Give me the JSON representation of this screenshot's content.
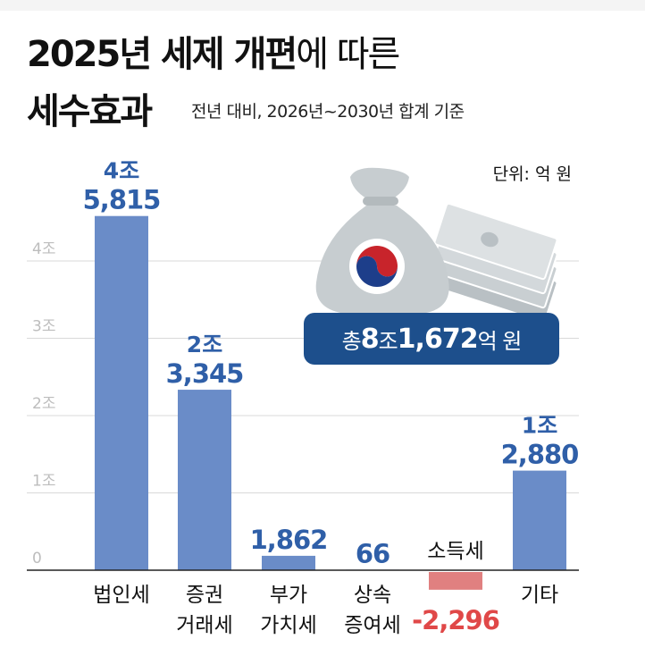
{
  "title": {
    "line1_bold": "2025년 세제 개편",
    "line1_light": "에 따른",
    "line2": "세수효과"
  },
  "subtitle": "전년 대비, 2026년~2030년 합계 기준",
  "unit": "단위: 억 원",
  "total_badge": {
    "prefix": "총 ",
    "big1": "8",
    "mid": "조 ",
    "big2": "1,672",
    "suffix": "억 원"
  },
  "icons": [
    "money-bag-icon",
    "korea-taegeuk-emblem-icon",
    "banknote-stack-icon"
  ],
  "colors": {
    "positive_bar": "#6a8cc8",
    "negative_bar": "#e08080",
    "positive_label": "#2f5fa8",
    "negative_label": "#e04848",
    "badge": "#1d4f8c"
  },
  "chart_data": {
    "type": "bar",
    "ylim": [
      0,
      50000
    ],
    "grid": true,
    "yticks": [
      {
        "value": 0,
        "label": "0"
      },
      {
        "value": 10000,
        "label": "1조"
      },
      {
        "value": 20000,
        "label": "2조"
      },
      {
        "value": 30000,
        "label": "3조"
      },
      {
        "value": 40000,
        "label": "4조"
      }
    ],
    "categories": [
      {
        "label_lines": [
          "법인세"
        ]
      },
      {
        "label_lines": [
          "증권",
          "거래세"
        ]
      },
      {
        "label_lines": [
          "부가",
          "가치세"
        ]
      },
      {
        "label_lines": [
          "상속",
          "증여세"
        ]
      },
      {
        "label_lines": [
          "소득세"
        ]
      },
      {
        "label_lines": [
          "기타"
        ]
      }
    ],
    "values": [
      45815,
      23345,
      1862,
      66,
      -2296,
      12880
    ],
    "value_labels": [
      [
        "4조",
        "5,815"
      ],
      [
        "2조",
        "3,345"
      ],
      [
        "1,862"
      ],
      [
        "66"
      ],
      [
        "-2,296"
      ],
      [
        "1조",
        "2,880"
      ]
    ]
  }
}
